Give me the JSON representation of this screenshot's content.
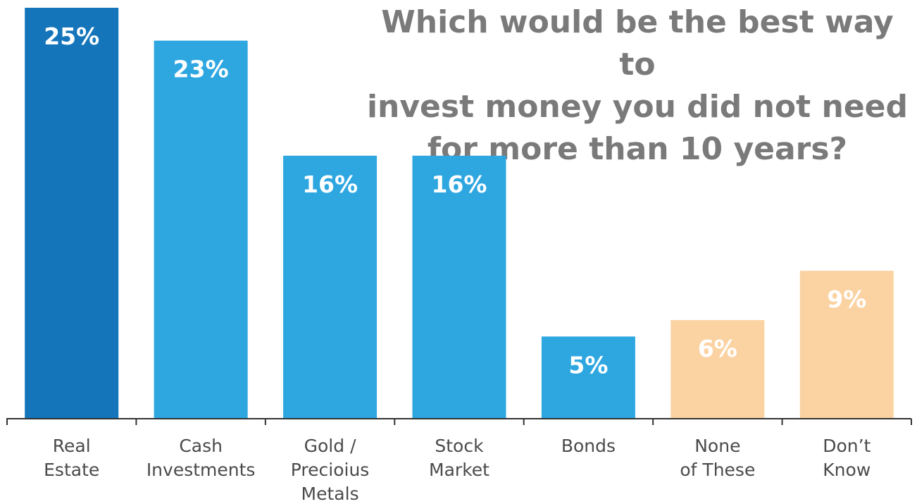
{
  "chart_data": {
    "type": "bar",
    "title": "Which would be the best way to\ninvest money you did not need\nfor more than 10 years?",
    "categories": [
      "Real\nEstate",
      "Cash\nInvestments",
      "Gold /\nPrecioius\nMetals",
      "Stock\nMarket",
      "Bonds",
      "None\nof These",
      "Don’t\nKnow"
    ],
    "values": [
      25,
      23,
      16,
      16,
      5,
      6,
      9
    ],
    "data_labels": [
      "25%",
      "23%",
      "16%",
      "16%",
      "5%",
      "6%",
      "9%"
    ],
    "colors": [
      "#1475bb",
      "#2ea7e1",
      "#2ea7e1",
      "#2ea7e1",
      "#2ea7e1",
      "#fbd3a3",
      "#fbd3a3"
    ],
    "ylim": [
      0,
      25
    ],
    "grid": false,
    "xlabel": "",
    "ylabel": ""
  }
}
